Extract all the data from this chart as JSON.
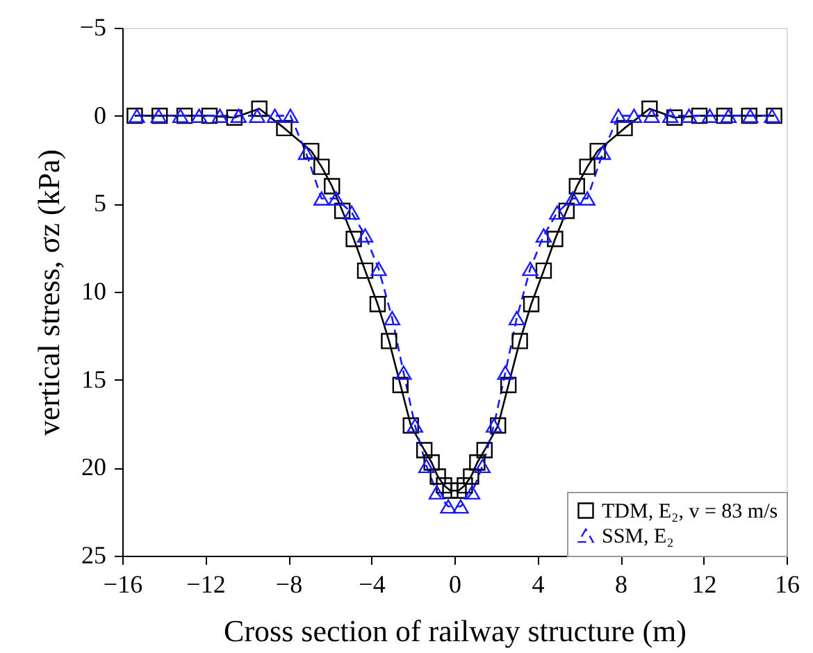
{
  "chart_data": {
    "type": "line",
    "xlabel": "Cross section of railway structure (m)",
    "ylabel": "vertical stress, σz (kPa)",
    "xlim": [
      -16,
      16
    ],
    "ylim": [
      25,
      -5
    ],
    "xticks": [
      {
        "value": -16,
        "label": "−16"
      },
      {
        "value": -12,
        "label": "−12"
      },
      {
        "value": -8,
        "label": "−8"
      },
      {
        "value": -4,
        "label": "−4"
      },
      0,
      4,
      8,
      12,
      16
    ],
    "yticks": [
      {
        "value": -5,
        "label": "−5"
      },
      0,
      5,
      10,
      15,
      20,
      25
    ],
    "grid": false,
    "legend": "bottom right",
    "series": [
      {
        "name": "TDM, E₂, v = 83 m/s",
        "color": "#000000",
        "marker": "square",
        "line_style": "solid",
        "x": [
          -15.4,
          -14.2,
          -13,
          -11.8,
          -10.6,
          -9.4,
          -8.2,
          -6.9,
          -6.4,
          -5.9,
          -5.4,
          -4.85,
          -4.3,
          -3.7,
          -3.15,
          -2.6,
          -2.1,
          -1.45,
          -1.1,
          -0.8,
          -0.5,
          -0.2,
          0.2,
          0.5,
          0.8,
          1.1,
          1.45,
          2.1,
          2.6,
          3.15,
          3.7,
          4.3,
          4.85,
          5.4,
          5.9,
          6.4,
          6.9,
          8.2,
          9.4,
          10.6,
          11.8,
          13,
          14.2,
          15.4
        ],
        "values": [
          0,
          0,
          0,
          0,
          0.1,
          -0.4,
          0.7,
          2.0,
          2.9,
          4.0,
          5.4,
          7.0,
          8.8,
          10.7,
          12.8,
          15.3,
          17.6,
          19.0,
          19.7,
          20.5,
          21.0,
          21.3,
          21.3,
          21.0,
          20.5,
          19.7,
          19.0,
          17.6,
          15.3,
          12.8,
          10.7,
          8.8,
          7.0,
          5.4,
          4.0,
          2.9,
          2.0,
          0.7,
          -0.4,
          0.1,
          0,
          0,
          0,
          0
        ]
      },
      {
        "name": "SSM, E₂",
        "color": "#1a1aff",
        "marker": "triangle",
        "line_style": "dashed",
        "x": [
          -15.3,
          -14.25,
          -13.2,
          -12.3,
          -11.3,
          -10.4,
          -9.5,
          -8.65,
          -7.9,
          -7.15,
          -6.4,
          -5.7,
          -4.95,
          -4.3,
          -3.65,
          -3.0,
          -2.45,
          -1.9,
          -1.35,
          -0.85,
          -0.3,
          0.3,
          0.85,
          1.35,
          1.9,
          2.45,
          3.0,
          3.65,
          4.3,
          4.95,
          5.7,
          6.4,
          7.15,
          7.9,
          8.65,
          9.5,
          10.4,
          11.3,
          12.3,
          13.2,
          14.25,
          15.3
        ],
        "values": [
          0,
          0,
          0,
          0,
          0,
          0,
          0,
          0,
          0,
          2.1,
          4.7,
          4.7,
          5.5,
          6.8,
          8.7,
          11.5,
          14.6,
          17.6,
          19.9,
          21.4,
          22.2,
          22.2,
          21.4,
          19.9,
          17.6,
          14.6,
          11.5,
          8.7,
          6.8,
          5.5,
          4.7,
          4.7,
          2.1,
          0,
          0,
          0,
          0,
          0,
          0,
          0,
          0,
          0
        ]
      }
    ]
  }
}
